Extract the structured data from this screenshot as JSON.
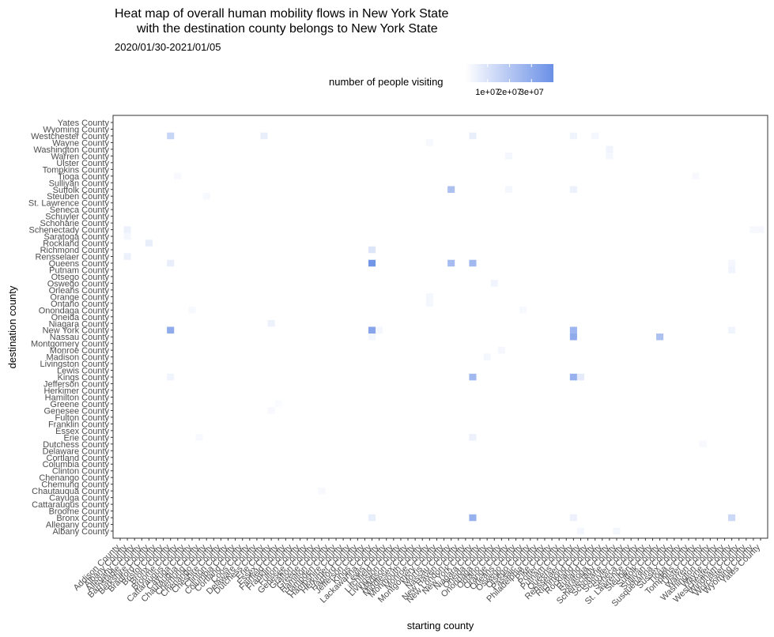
{
  "chart_data": {
    "type": "heatmap",
    "title_line1": "Heat map of overall human mobility flows in New York State",
    "title_line2": "with the destination county belongs to New York State",
    "subtitle": "2020/01/30-2021/01/05",
    "xlabel": "starting county",
    "ylabel": "destination county",
    "legend": {
      "title": "number of people visiting",
      "ticks": [
        "1e+07",
        "2e+07",
        "3e+07"
      ],
      "range": [
        0,
        40000000
      ],
      "tick_values": [
        10000000,
        20000000,
        30000000
      ],
      "color_low": "#ffffff",
      "color_high": "#6a8fe6",
      "placement": "top"
    },
    "y_categories": [
      "Albany County",
      "Allegany County",
      "Bronx County",
      "Broome County",
      "Cattaraugus County",
      "Cayuga County",
      "Chautauqua County",
      "Chemung County",
      "Chenango County",
      "Clinton County",
      "Columbia County",
      "Cortland County",
      "Delaware County",
      "Dutchess County",
      "Erie County",
      "Essex County",
      "Franklin County",
      "Fulton County",
      "Genesee County",
      "Greene County",
      "Hamilton County",
      "Herkimer County",
      "Jefferson County",
      "Kings County",
      "Lewis County",
      "Livingston County",
      "Madison County",
      "Monroe County",
      "Montgomery County",
      "Nassau County",
      "New York County",
      "Niagara County",
      "Oneida County",
      "Onondaga County",
      "Ontario County",
      "Orange County",
      "Orleans County",
      "Oswego County",
      "Otsego County",
      "Putnam County",
      "Queens County",
      "Rensselaer County",
      "Richmond County",
      "Rockland County",
      "Saratoga County",
      "Schenectady County",
      "Schoharie County",
      "Schuyler County",
      "Seneca County",
      "St. Lawrence County",
      "Steuben County",
      "Suffolk County",
      "Sullivan County",
      "Tioga County",
      "Tompkins County",
      "Ulster County",
      "Warren County",
      "Washington County",
      "Wayne County",
      "Westchester County",
      "Wyoming County",
      "Yates County"
    ],
    "x_categories": [
      "Addison County",
      "Albany County",
      "Allegany County",
      "Barnstable County",
      "Berkshire County",
      "Bradford County",
      "Bristol County",
      "Bronx County",
      "Broome County",
      "Cattaraugus County",
      "Cayuga County",
      "Chautauqua County",
      "Chemung County",
      "Chenango County",
      "Cheshire County",
      "Clinton County",
      "Columbia County",
      "Cortland County",
      "Coos County",
      "Delaware County",
      "Dutchess County",
      "Erie County",
      "Essex County",
      "Fairfield County",
      "Franklin County",
      "Fulton County",
      "Genesee County",
      "Grafton County",
      "Greene County",
      "Hamilton County",
      "Hampden County",
      "Hampshire County",
      "Herkimer County",
      "Hartford County",
      "Jefferson County",
      "Kings County",
      "Lackawanna County",
      "Lewis County",
      "Litchfield County",
      "Livingston County",
      "Madison County",
      "Middlesex County",
      "Monmouth County",
      "Monroe County",
      "Montgomery County",
      "Morris County",
      "Nassau County",
      "New Haven County",
      "New London County",
      "New York County",
      "Niagara County",
      "Oneida County",
      "Onondaga County",
      "Ontario County",
      "Orange County",
      "Orleans County",
      "Oswego County",
      "Otsego County",
      "Passaic County",
      "Philadelphia County",
      "Pike County",
      "Potter County",
      "Putnam County",
      "Queens County",
      "Rensselaer County",
      "Richmond County",
      "Rockland County",
      "Rutland County",
      "Saratoga County",
      "Schenectady County",
      "Schoharie County",
      "Schuyler County",
      "Seneca County",
      "St. Lawrence County",
      "Steuben County",
      "Suffolk County",
      "Sullivan County",
      "Susquehanna County",
      "Sussex County",
      "Tioga County",
      "Tompkins County",
      "Ulster County",
      "Warren County",
      "Washington County",
      "Wayne County",
      "Westchester County",
      "Windham County",
      "Worcester County",
      "Wyoming County",
      "Yates County"
    ],
    "cells": [
      {
        "x": "Bronx County",
        "y": "Westchester County",
        "value": 15000000
      },
      {
        "x": "Bronx County",
        "y": "New York County",
        "value": 30000000
      },
      {
        "x": "Bronx County",
        "y": "Queens County",
        "value": 6000000
      },
      {
        "x": "Bronx County",
        "y": "Kings County",
        "value": 4000000
      },
      {
        "x": "Kings County",
        "y": "Queens County",
        "value": 38000000
      },
      {
        "x": "Kings County",
        "y": "New York County",
        "value": 32000000
      },
      {
        "x": "Kings County",
        "y": "Richmond County",
        "value": 9000000
      },
      {
        "x": "Kings County",
        "y": "Bronx County",
        "value": 6000000
      },
      {
        "x": "Kings County",
        "y": "Nassau County",
        "value": 3000000
      },
      {
        "x": "Nassau County",
        "y": "Suffolk County",
        "value": 22000000
      },
      {
        "x": "Nassau County",
        "y": "Queens County",
        "value": 24000000
      },
      {
        "x": "New York County",
        "y": "Queens County",
        "value": 25000000
      },
      {
        "x": "New York County",
        "y": "Kings County",
        "value": 25000000
      },
      {
        "x": "New York County",
        "y": "Bronx County",
        "value": 28000000
      },
      {
        "x": "New York County",
        "y": "Westchester County",
        "value": 6000000
      },
      {
        "x": "New York County",
        "y": "Erie County",
        "value": 5000000
      },
      {
        "x": "Queens County",
        "y": "New York County",
        "value": 26000000
      },
      {
        "x": "Queens County",
        "y": "Nassau County",
        "value": 30000000
      },
      {
        "x": "Queens County",
        "y": "Kings County",
        "value": 28000000
      },
      {
        "x": "Queens County",
        "y": "Suffolk County",
        "value": 5000000
      },
      {
        "x": "Queens County",
        "y": "Bronx County",
        "value": 5000000
      },
      {
        "x": "Rensselaer County",
        "y": "Kings County",
        "value": 7000000
      },
      {
        "x": "Suffolk County",
        "y": "Nassau County",
        "value": 22000000
      },
      {
        "x": "Westchester County",
        "y": "Bronx County",
        "value": 14000000
      },
      {
        "x": "Westchester County",
        "y": "Putnam County",
        "value": 4000000
      },
      {
        "x": "Westchester County",
        "y": "New York County",
        "value": 4000000
      },
      {
        "x": "Albany County",
        "y": "Schenectady County",
        "value": 5000000
      },
      {
        "x": "Albany County",
        "y": "Rensselaer County",
        "value": 5000000
      },
      {
        "x": "Albany County",
        "y": "Saratoga County",
        "value": 3000000
      },
      {
        "x": "Berkshire County",
        "y": "Rockland County",
        "value": 6000000
      },
      {
        "x": "Dutchess County",
        "y": "Westchester County",
        "value": 6000000
      },
      {
        "x": "Erie County",
        "y": "Niagara County",
        "value": 5000000
      },
      {
        "x": "Onondaga County",
        "y": "Oswego County",
        "value": 4000000
      },
      {
        "x": "Monroe County",
        "y": "Ontario County",
        "value": 3000000
      },
      {
        "x": "Monroe County",
        "y": "Orange County",
        "value": 3000000
      },
      {
        "x": "Monroe County",
        "y": "Wayne County",
        "value": 2500000
      },
      {
        "x": "Oneida County",
        "y": "Madison County",
        "value": 3000000
      },
      {
        "x": "Ontario County",
        "y": "Monroe County",
        "value": 3000000
      },
      {
        "x": "Orange County",
        "y": "Suffolk County",
        "value": 3000000
      },
      {
        "x": "Orange County",
        "y": "Warren County",
        "value": 3000000
      },
      {
        "x": "Queens County",
        "y": "Westchester County",
        "value": 4000000
      },
      {
        "x": "Rockland County",
        "y": "Westchester County",
        "value": 3000000
      },
      {
        "x": "Saratoga County",
        "y": "Washington County",
        "value": 4000000
      },
      {
        "x": "Saratoga County",
        "y": "Warren County",
        "value": 3000000
      },
      {
        "x": "Schenectady County",
        "y": "Albany County",
        "value": 3000000
      },
      {
        "x": "Rensselaer County",
        "y": "Albany County",
        "value": 3000000
      },
      {
        "x": "Kings County",
        "y": "New York County",
        "value": 32000000
      },
      {
        "x": "Westchester County",
        "y": "Queens County",
        "value": 3000000
      },
      {
        "x": "Lackawanna County",
        "y": "New York County",
        "value": 3000000
      },
      {
        "x": "Wyoming County",
        "y": "Schenectady County",
        "value": 2500000
      },
      {
        "x": "Yates County",
        "y": "Schenectady County",
        "value": 2500000
      },
      {
        "x": "Erie County",
        "y": "Genesee County",
        "value": 2000000
      },
      {
        "x": "Tompkins County",
        "y": "Tioga County",
        "value": 2000000
      },
      {
        "x": "Ulster County",
        "y": "Dutchess County",
        "value": 2000000
      },
      {
        "x": "Oswego County",
        "y": "Onondaga County",
        "value": 2000000
      },
      {
        "x": "Cayuga County",
        "y": "Onondaga County",
        "value": 2000000
      },
      {
        "x": "Chautauqua County",
        "y": "Erie County",
        "value": 2000000
      },
      {
        "x": "Broome County",
        "y": "Tioga County",
        "value": 2000000
      },
      {
        "x": "Chemung County",
        "y": "Steuben County",
        "value": 2000000
      },
      {
        "x": "Greene County",
        "y": "Chautauqua County",
        "value": 2000000
      },
      {
        "x": "Essex County",
        "y": "Greene County",
        "value": 1500000
      }
    ]
  }
}
